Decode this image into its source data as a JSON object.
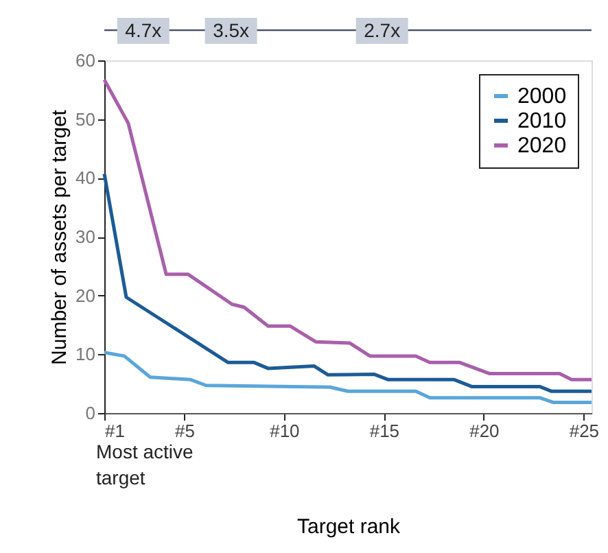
{
  "chart_data": {
    "type": "line",
    "xlabel": "Target rank",
    "ylabel": "Number of assets per target",
    "xlim": [
      1,
      25.4
    ],
    "ylim": [
      0,
      60
    ],
    "xticks": [
      {
        "value": 1,
        "label": "#1"
      },
      {
        "value": 5,
        "label": "#5"
      },
      {
        "value": 10,
        "label": "#10"
      },
      {
        "value": 15,
        "label": "#15"
      },
      {
        "value": 20,
        "label": "#20"
      },
      {
        "value": 25,
        "label": "#25"
      }
    ],
    "yticks": [
      0,
      10,
      20,
      30,
      40,
      50,
      60
    ],
    "grid": false,
    "legend": "top right",
    "marker": "none",
    "line_style": "solid",
    "annotations": [
      "4.7x",
      "3.5x",
      "2.7x",
      "Most active target"
    ],
    "series": [
      {
        "name": "2000",
        "color": "#5aa6da",
        "x": [
          1,
          2.0,
          3.3,
          5.3,
          6.1,
          12.3,
          13.2,
          16.6,
          17.3,
          22.8,
          23.5,
          25.4
        ],
        "values": [
          10.3,
          9.7,
          6.1,
          5.7,
          4.7,
          4.4,
          3.7,
          3.7,
          2.6,
          2.6,
          1.8,
          1.8
        ]
      },
      {
        "name": "2010",
        "color": "#1c5b96",
        "x": [
          1,
          2.1,
          7.2,
          8.5,
          9.2,
          11.5,
          12.2,
          14.5,
          15.2,
          18.5,
          19.4,
          22.8,
          23.4,
          25.4
        ],
        "values": [
          40.7,
          19.7,
          8.6,
          8.6,
          7.6,
          8.0,
          6.5,
          6.6,
          5.7,
          5.7,
          4.5,
          4.5,
          3.7,
          3.7
        ]
      },
      {
        "name": "2020",
        "color": "#a95fab",
        "x": [
          1,
          2.2,
          4.1,
          5.2,
          7.4,
          8.0,
          9.2,
          10.3,
          11.6,
          13.3,
          14.3,
          16.6,
          17.3,
          18.8,
          20.3,
          23.8,
          24.4,
          25.4
        ],
        "values": [
          56.7,
          49.3,
          23.6,
          23.6,
          18.5,
          18.0,
          14.8,
          14.8,
          12.1,
          11.9,
          9.7,
          9.7,
          8.6,
          8.6,
          6.7,
          6.7,
          5.7,
          5.7
        ]
      }
    ]
  }
}
